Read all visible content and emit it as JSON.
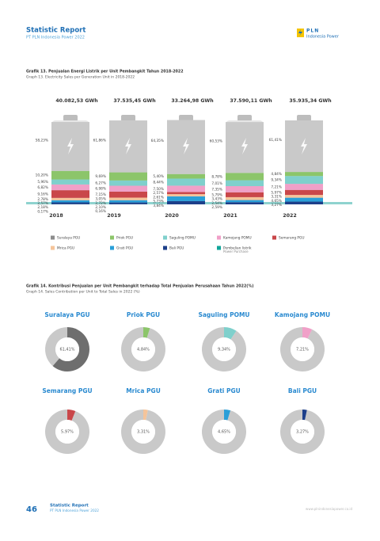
{
  "header": {
    "title": "Statistic Report",
    "subtitle": "PT PLN Indonesia Power 2022",
    "logo_text": "PLN",
    "logo_subtext": "Indonesia Power"
  },
  "chart_data": [
    {
      "type": "battery",
      "title": "Grafik 13. Penjualan Energi Listrik per Unit Pembangkit Tahun 2018-2022",
      "subtitle": "Graph 13. Electricity Sales per Generation Unit in 2018-2022",
      "categories": [
        "2018",
        "2019",
        "2020",
        "2021",
        "2022"
      ],
      "totals": [
        40082.53,
        37535.45,
        33264.98,
        37590.11,
        35935.34
      ],
      "total_labels": [
        "40.082,53 GWh",
        "37.535,45 GWh",
        "33.264,98 GWh",
        "37.590,11 GWh",
        "35.935,34 GWh"
      ],
      "series": [
        {
          "name": "Suralaya PGU",
          "color": "#c9c9c9",
          "legend_color": "#8c8c8c",
          "values": [
            58.23,
            61.86,
            64.35,
            60.53,
            61.41
          ],
          "value_labels": [
            "58,23%",
            "61,86%",
            "64,35%",
            "60,53%",
            "61,41%"
          ]
        },
        {
          "name": "Priok PGU",
          "color": "#8cc56a",
          "values": [
            10.2,
            9.69,
            5.4,
            8.78,
            4.84
          ],
          "value_labels": [
            "10,20%",
            "9,69%",
            "5,40%",
            "8,78%",
            "4,84%"
          ]
        },
        {
          "name": "Saguling POMU",
          "color": "#7fd0cc",
          "values": [
            5.96,
            6.27,
            8.44,
            7.01,
            9.34
          ],
          "value_labels": [
            "5,96%",
            "6,27%",
            "8,44%",
            "7,01%",
            "9,34%"
          ]
        },
        {
          "name": "Kamojang POMU",
          "color": "#f0a0c8",
          "values": [
            6.82,
            6.98,
            7.5,
            7.35,
            7.21
          ],
          "value_labels": [
            "6,82%",
            "6,98%",
            "7,50%",
            "7,35%",
            "7,21%"
          ]
        },
        {
          "name": "Semarang PGU",
          "color": "#c9474a",
          "values": [
            9.16,
            7.15,
            2.57,
            5.79,
            5.97
          ],
          "value_labels": [
            "9,16%",
            "7,15%",
            "2,57%",
            "5,79%",
            "5,97%"
          ]
        },
        {
          "name": "Mrica PGU",
          "color": "#f5c49a",
          "values": [
            2.78,
            3.05,
            2.61,
            3.43,
            3.31
          ],
          "value_labels": [
            "2,78%",
            "3,05%",
            "2,61%",
            "3,43%",
            "3,31%"
          ]
        },
        {
          "name": "Grati PGU",
          "color": "#2a9fd8",
          "values": [
            2.57,
            2.72,
            5.73,
            2.54,
            4.65
          ],
          "value_labels": [
            "2,57%",
            "2,72%",
            "5,73%",
            "2,54%",
            "4,65%"
          ]
        },
        {
          "name": "Bali PGU",
          "color": "#1d3f8a",
          "values": [
            2.18,
            2.1,
            3.84,
            2.59,
            3.27
          ],
          "value_labels": [
            "2,18%",
            "2,10%",
            "3,84%",
            "2,59%",
            "3,27%"
          ]
        },
        {
          "name": "Pembelian listrik",
          "name_en": "Power Purchase",
          "color": "#10a59a",
          "values": [
            0.17,
            0.16,
            null,
            null,
            null
          ],
          "value_labels": [
            "0,17%",
            "0,16%",
            null,
            null,
            null
          ]
        }
      ]
    },
    {
      "type": "donut",
      "title": "Grafik 14. Kontribusi Penjualan per Unit Pembangkit terhadap Total Penjualan Perusahaan Tahun 2022(%)",
      "subtitle": "Graph 14. Sales Contribution per Unit to Total Sales in 2022 (%)",
      "categories": [
        "Suralaya PGU",
        "Priok PGU",
        "Saguling POMU",
        "Kamojang POMU",
        "Semarang PGU",
        "Mrica PGU",
        "Grati PGU",
        "Bali PGU"
      ],
      "values": [
        61.41,
        4.84,
        9.34,
        7.21,
        5.97,
        3.31,
        4.65,
        3.27
      ],
      "value_labels": [
        "61,41%",
        "4,84%",
        "9,34%",
        "7,21%",
        "5,97%",
        "3,31%",
        "4,65%",
        "3,27%"
      ],
      "colors": [
        "#6e6e6e",
        "#8cc56a",
        "#7fd0cc",
        "#f0a0c8",
        "#c9474a",
        "#f5c49a",
        "#2a9fd8",
        "#1d3f8a"
      ],
      "rest_color": "#c9c9c9"
    }
  ],
  "footer": {
    "page": "46",
    "title": "Statistic Report",
    "subtitle": "PT PLN Indonesia Power 2022",
    "url": "www.plnindonesiapower.co.id"
  }
}
